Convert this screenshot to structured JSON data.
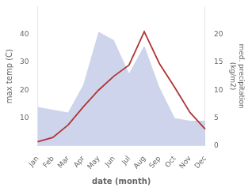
{
  "chart_data": {
    "type": "line",
    "categories": [
      "Jan",
      "Feb",
      "Mar",
      "Apr",
      "May",
      "Jun",
      "Jul",
      "Aug",
      "Sep",
      "Oct",
      "Nov",
      "Dec"
    ],
    "xlabel": "date (month)",
    "ylabel": "max temp (C)",
    "y2label": "med. precipitation\n(kg/m2)",
    "series": [
      {
        "type": "area",
        "color": "#c5cce8",
        "axis": "y2",
        "values": [
          7.0,
          6.5,
          6.0,
          11.0,
          20.5,
          19.0,
          13.0,
          18.0,
          10.5,
          5.0,
          4.5,
          4.5
        ]
      },
      {
        "type": "line",
        "color": "#b03535",
        "values": [
          1.5,
          3.0,
          7.5,
          14.0,
          20.0,
          25.0,
          29.0,
          41.0,
          29.5,
          21.0,
          12.0,
          6.0
        ]
      }
    ],
    "ylim": [
      0,
      50
    ],
    "yticks": [
      10,
      20,
      30,
      40
    ],
    "y2lim": [
      0,
      25
    ],
    "y2ticks": [
      0,
      5,
      10,
      15,
      20
    ],
    "grid": false
  }
}
